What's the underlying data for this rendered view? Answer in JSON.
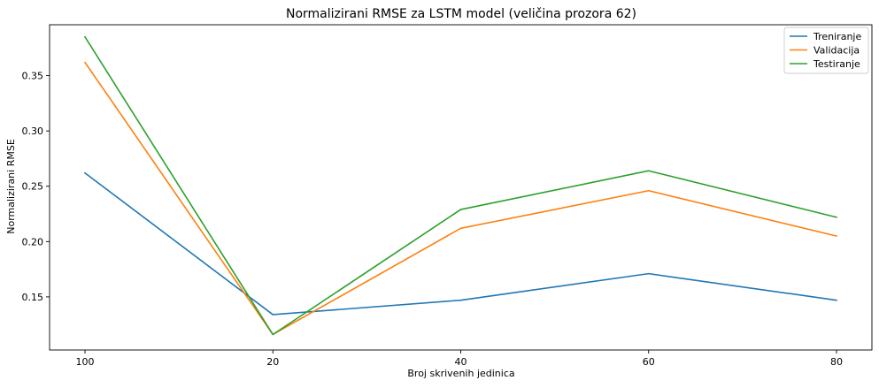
{
  "chart_data": {
    "type": "line",
    "title": "Normalizirani RMSE za LSTM model (veličina prozora 62)",
    "xlabel": "Broj skrivenih jedinica",
    "ylabel": "Normalizirani RMSE",
    "categories": [
      "100",
      "20",
      "40",
      "60",
      "80"
    ],
    "y_ticks": [
      "0.15",
      "0.20",
      "0.25",
      "0.30",
      "0.35"
    ],
    "ylim": [
      0.102,
      0.396
    ],
    "grid": false,
    "legend_position": "top-right",
    "series": [
      {
        "name": "Treniranje",
        "color": "#1f77b4",
        "values": [
          0.262,
          0.134,
          0.147,
          0.171,
          0.147
        ]
      },
      {
        "name": "Validacija",
        "color": "#ff7f0e",
        "values": [
          0.362,
          0.116,
          0.212,
          0.246,
          0.205
        ]
      },
      {
        "name": "Testiranje",
        "color": "#2ca02c",
        "values": [
          0.385,
          0.116,
          0.229,
          0.264,
          0.222
        ]
      }
    ]
  }
}
